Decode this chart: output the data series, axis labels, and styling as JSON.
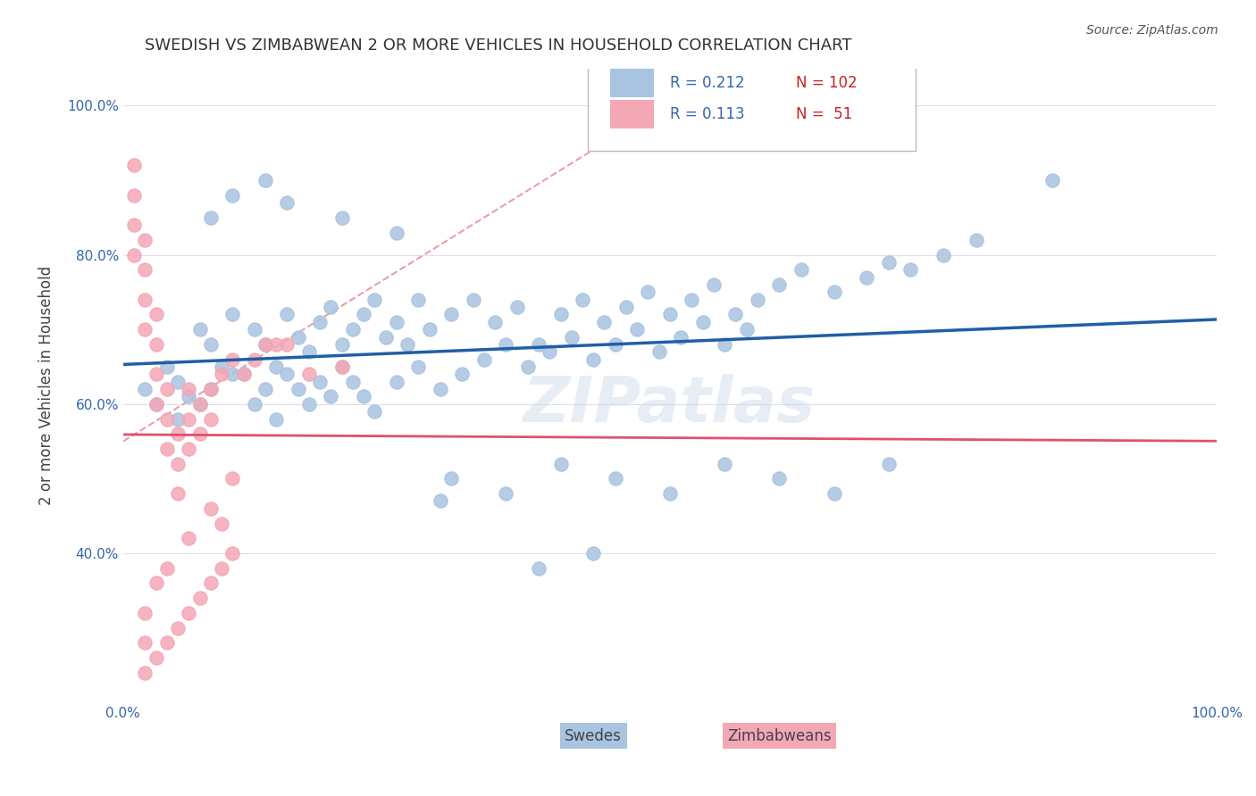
{
  "title": "SWEDISH VS ZIMBABWEAN 2 OR MORE VEHICLES IN HOUSEHOLD CORRELATION CHART",
  "source": "Source: ZipAtlas.com",
  "ylabel": "2 or more Vehicles in Household",
  "xlabel": "",
  "xlim": [
    0.0,
    1.0
  ],
  "ylim": [
    0.0,
    1.0
  ],
  "xtick_labels": [
    "0.0%",
    "100.0%"
  ],
  "ytick_labels": [
    "40.0%",
    "60.0%",
    "80.0%",
    "100.0%"
  ],
  "ytick_positions": [
    0.4,
    0.6,
    0.8,
    1.0
  ],
  "xtick_positions": [
    0.0,
    1.0
  ],
  "R_swedish": 0.212,
  "N_swedish": 102,
  "R_zimbabwean": 0.113,
  "N_zimbabwean": 51,
  "legend_labels": [
    "Swedes",
    "Zimbabweans"
  ],
  "color_swedish": "#a8c4e0",
  "color_zimbabwean": "#f4a7b5",
  "line_color_swedish": "#1f5fa6",
  "line_color_zimbabwean": "#e05070",
  "diagonal_color": "#e8a0a8",
  "watermark": "ZIPatlas",
  "swedish_x": [
    0.02,
    0.03,
    0.04,
    0.05,
    0.06,
    0.07,
    0.08,
    0.09,
    0.1,
    0.11,
    0.12,
    0.13,
    0.14,
    0.15,
    0.16,
    0.17,
    0.18,
    0.19,
    0.2,
    0.21,
    0.22,
    0.23,
    0.24,
    0.25,
    0.26,
    0.27,
    0.28,
    0.3,
    0.32,
    0.34,
    0.36,
    0.38,
    0.4,
    0.42,
    0.44,
    0.46,
    0.48,
    0.5,
    0.52,
    0.54,
    0.56,
    0.58,
    0.6,
    0.62,
    0.65,
    0.68,
    0.7,
    0.72,
    0.75,
    0.78,
    0.05,
    0.07,
    0.08,
    0.1,
    0.12,
    0.13,
    0.14,
    0.15,
    0.16,
    0.17,
    0.18,
    0.19,
    0.2,
    0.21,
    0.22,
    0.23,
    0.25,
    0.27,
    0.29,
    0.31,
    0.33,
    0.35,
    0.37,
    0.39,
    0.41,
    0.43,
    0.45,
    0.47,
    0.49,
    0.51,
    0.53,
    0.55,
    0.57,
    0.29,
    0.08,
    0.1,
    0.13,
    0.15,
    0.2,
    0.25,
    0.3,
    0.35,
    0.4,
    0.45,
    0.5,
    0.55,
    0.6,
    0.65,
    0.7,
    0.85,
    0.38,
    0.43
  ],
  "swedish_y": [
    0.62,
    0.6,
    0.65,
    0.63,
    0.61,
    0.7,
    0.68,
    0.65,
    0.72,
    0.64,
    0.7,
    0.68,
    0.65,
    0.72,
    0.69,
    0.67,
    0.71,
    0.73,
    0.68,
    0.7,
    0.72,
    0.74,
    0.69,
    0.71,
    0.68,
    0.74,
    0.7,
    0.72,
    0.74,
    0.71,
    0.73,
    0.68,
    0.72,
    0.74,
    0.71,
    0.73,
    0.75,
    0.72,
    0.74,
    0.76,
    0.72,
    0.74,
    0.76,
    0.78,
    0.75,
    0.77,
    0.79,
    0.78,
    0.8,
    0.82,
    0.58,
    0.6,
    0.62,
    0.64,
    0.6,
    0.62,
    0.58,
    0.64,
    0.62,
    0.6,
    0.63,
    0.61,
    0.65,
    0.63,
    0.61,
    0.59,
    0.63,
    0.65,
    0.62,
    0.64,
    0.66,
    0.68,
    0.65,
    0.67,
    0.69,
    0.66,
    0.68,
    0.7,
    0.67,
    0.69,
    0.71,
    0.68,
    0.7,
    0.47,
    0.85,
    0.88,
    0.9,
    0.87,
    0.85,
    0.83,
    0.5,
    0.48,
    0.52,
    0.5,
    0.48,
    0.52,
    0.5,
    0.48,
    0.52,
    0.9,
    0.38,
    0.4
  ],
  "zimbabwean_x": [
    0.01,
    0.01,
    0.01,
    0.01,
    0.02,
    0.02,
    0.02,
    0.02,
    0.03,
    0.03,
    0.03,
    0.03,
    0.04,
    0.04,
    0.04,
    0.05,
    0.05,
    0.05,
    0.06,
    0.06,
    0.06,
    0.07,
    0.07,
    0.08,
    0.08,
    0.09,
    0.1,
    0.11,
    0.12,
    0.13,
    0.14,
    0.15,
    0.17,
    0.2,
    0.09,
    0.1,
    0.08,
    0.06,
    0.04,
    0.03,
    0.02,
    0.02,
    0.02,
    0.03,
    0.04,
    0.05,
    0.06,
    0.07,
    0.08,
    0.09,
    0.1
  ],
  "zimbabwean_y": [
    0.92,
    0.88,
    0.84,
    0.8,
    0.82,
    0.78,
    0.74,
    0.7,
    0.72,
    0.68,
    0.64,
    0.6,
    0.62,
    0.58,
    0.54,
    0.56,
    0.52,
    0.48,
    0.62,
    0.58,
    0.54,
    0.6,
    0.56,
    0.62,
    0.58,
    0.64,
    0.66,
    0.64,
    0.66,
    0.68,
    0.68,
    0.68,
    0.64,
    0.65,
    0.44,
    0.5,
    0.46,
    0.42,
    0.38,
    0.36,
    0.32,
    0.28,
    0.24,
    0.26,
    0.28,
    0.3,
    0.32,
    0.34,
    0.36,
    0.38,
    0.4
  ]
}
